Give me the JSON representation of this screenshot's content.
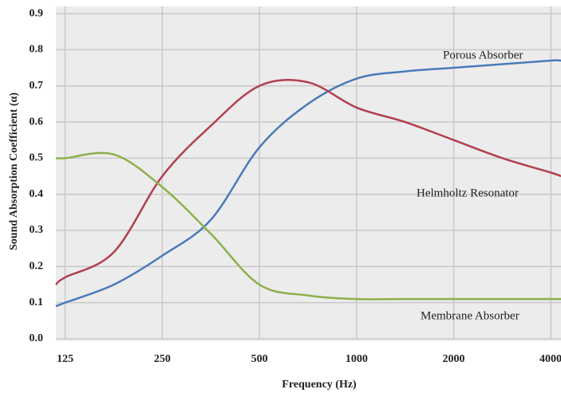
{
  "chart_data": {
    "type": "line",
    "x_label": "Frequency (Hz)",
    "y_label": "Sound Absorption Coefficient (α)",
    "x_scale": "log",
    "x": [
      117,
      125,
      177,
      250,
      354,
      500,
      707,
      1000,
      1414,
      2000,
      2828,
      4000,
      4300
    ],
    "series": [
      {
        "name": "Porous Absorber",
        "color": "#4a7ab8",
        "values": [
          0.09,
          0.1,
          0.15,
          0.23,
          0.33,
          0.53,
          0.65,
          0.72,
          0.74,
          0.75,
          0.76,
          0.77,
          0.77
        ]
      },
      {
        "name": "Helmholtz Resonator",
        "color": "#b0404f",
        "values": [
          0.15,
          0.17,
          0.24,
          0.45,
          0.59,
          0.7,
          0.71,
          0.64,
          0.6,
          0.55,
          0.5,
          0.46,
          0.45
        ]
      },
      {
        "name": "Membrane Absorber",
        "color": "#8db04a",
        "values": [
          0.5,
          0.5,
          0.51,
          0.42,
          0.29,
          0.15,
          0.12,
          0.11,
          0.11,
          0.11,
          0.11,
          0.11,
          0.11
        ]
      }
    ],
    "xlim": [
      117,
      4300
    ],
    "ylim": [
      0,
      0.92
    ],
    "xticks": [
      125,
      250,
      500,
      1000,
      2000,
      4000
    ],
    "yticks": [
      {
        "value": 0,
        "label": "0.0"
      },
      0.1,
      0.2,
      0.3,
      0.4,
      0.5,
      0.6,
      0.7,
      0.8,
      0.9
    ],
    "grid": true
  }
}
